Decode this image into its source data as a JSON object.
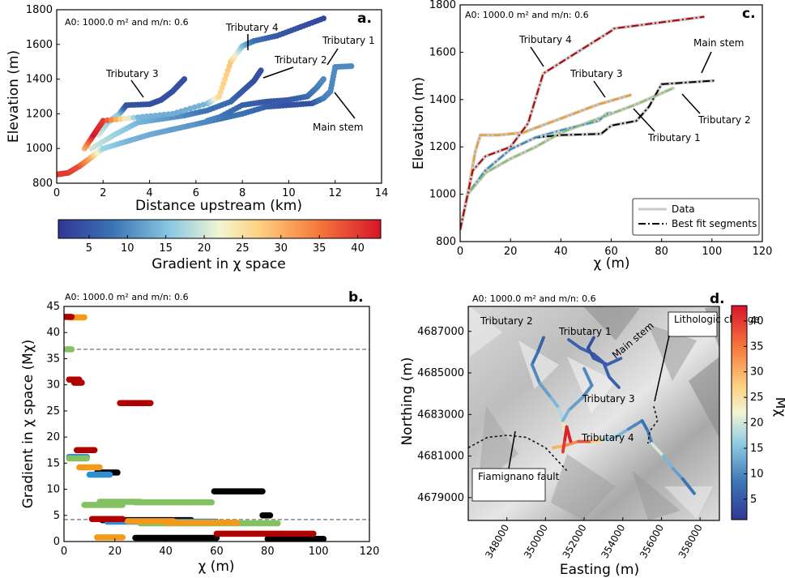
{
  "colors": {
    "colormap": [
      "#3a4fa0",
      "#3f86c3",
      "#8dcde6",
      "#f4f2c7",
      "#fcc26e",
      "#f47a3a",
      "#d6202c"
    ],
    "tributary_1": "#2e8fd1",
    "tributary_2": "#84c261",
    "tributary_3": "#f39a1b",
    "tributary_4": "#b00000",
    "main_stem": "#000000",
    "data": "#c8c8c8",
    "ref_line": "#888888"
  },
  "header_text": "A0: 1000.0 m² and m/n: 0.6",
  "panel_a": {
    "label": "a.",
    "xlabel": "Distance upstream (km)",
    "ylabel": "Elevation (m)",
    "x_ticks": [
      "0",
      "2",
      "4",
      "6",
      "8",
      "10",
      "12",
      "14"
    ],
    "y_ticks": [
      "800",
      "1000",
      "1200",
      "1400",
      "1600",
      "1800"
    ],
    "colorbar_label": "Gradient in χ space",
    "colorbar_ticks": [
      "5",
      "10",
      "15",
      "20",
      "25",
      "30",
      "35",
      "40"
    ],
    "annotations": [
      "Tributary 3",
      "Tributary 4",
      "Tributary 2",
      "Tributary 1",
      "Main stem"
    ]
  },
  "panel_b": {
    "label": "b.",
    "xlabel": "χ (m)",
    "ylabel": "Gradient in χ space (Mχ)",
    "x_ticks": [
      "0",
      "20",
      "40",
      "60",
      "80",
      "100",
      "120"
    ],
    "y_ticks": [
      "0",
      "5",
      "10",
      "15",
      "20",
      "25",
      "30",
      "35",
      "40",
      "45"
    ]
  },
  "panel_c": {
    "label": "c.",
    "xlabel": "χ (m)",
    "ylabel": "Elevation (m)",
    "x_ticks": [
      "0",
      "20",
      "40",
      "60",
      "80",
      "100",
      "120"
    ],
    "y_ticks": [
      "800",
      "1000",
      "1200",
      "1400",
      "1600",
      "1800"
    ],
    "legend": [
      "Data",
      "Best fit segments"
    ],
    "annotations": [
      "Tributary 4",
      "Tributary 3",
      "Main stem",
      "Tributary 2",
      "Tributary 1"
    ]
  },
  "panel_d": {
    "label": "d.",
    "xlabel": "Easting (m)",
    "ylabel": "Northing (m)",
    "x_ticks": [
      "348000",
      "350000",
      "352000",
      "354000",
      "356000",
      "358000"
    ],
    "y_ticks": [
      "4679000",
      "4681000",
      "4683000",
      "4685000",
      "4687000"
    ],
    "colorbar_label": "Mχ",
    "colorbar_ticks": [
      "5",
      "10",
      "15",
      "20",
      "25",
      "30",
      "35",
      "40"
    ],
    "annotations": [
      "Tributary 2",
      "Tributary 1",
      "Main stem",
      "Tributary 3",
      "Tributary 4",
      "Lithologic change",
      "Fiamignano fault"
    ]
  },
  "chart_data": [
    {
      "type": "scatter",
      "panel": "a",
      "xlabel": "Distance upstream (km)",
      "ylabel": "Elevation (m)",
      "xlim": [
        0,
        14
      ],
      "ylim": [
        800,
        1800
      ],
      "colorbar": {
        "label": "Gradient in χ space",
        "range": [
          1,
          43
        ]
      },
      "series": [
        {
          "name": "Main stem",
          "x": [
            0,
            0.5,
            1.0,
            1.5,
            2.0,
            3.0,
            4.0,
            5.0,
            6.0,
            7.0,
            8.0,
            9.0,
            10.0,
            11.0,
            11.5,
            11.8,
            12.0,
            12.7
          ],
          "y": [
            850,
            860,
            900,
            950,
            1000,
            1040,
            1080,
            1110,
            1140,
            1170,
            1200,
            1240,
            1250,
            1260,
            1290,
            1330,
            1470,
            1475
          ],
          "gradient": [
            40,
            40,
            38,
            30,
            17,
            14,
            13,
            12,
            11,
            8,
            8,
            6,
            4,
            4,
            9,
            10,
            10,
            10
          ]
        },
        {
          "name": "Tributary 1",
          "x": [
            6.5,
            7.0,
            8.0,
            9.0,
            10.0,
            10.8,
            11.2,
            11.5
          ],
          "y": [
            1160,
            1180,
            1250,
            1270,
            1280,
            1300,
            1350,
            1400
          ],
          "gradient": [
            10,
            9,
            6,
            5,
            5,
            7,
            9,
            10
          ]
        },
        {
          "name": "Tributary 2",
          "x": [
            1.5,
            2.5,
            3.5,
            4.5,
            5.5,
            6.5,
            7.5,
            8.0,
            8.5,
            8.8
          ],
          "y": [
            1000,
            1080,
            1150,
            1170,
            1190,
            1220,
            1270,
            1330,
            1390,
            1450
          ],
          "gradient": [
            20,
            17,
            14,
            12,
            10,
            8,
            7,
            5,
            4,
            4
          ]
        },
        {
          "name": "Tributary 3",
          "x": [
            1.8,
            2.2,
            2.7,
            3.0,
            4.0,
            4.5,
            5.0,
            5.5
          ],
          "y": [
            1080,
            1150,
            1200,
            1250,
            1255,
            1280,
            1330,
            1400
          ],
          "gradient": [
            20,
            17,
            16,
            4,
            4,
            4,
            4,
            4
          ]
        },
        {
          "name": "Tributary 4",
          "x": [
            1.2,
            1.6,
            2.0,
            3.5,
            5.0,
            6.5,
            7.0,
            7.5,
            8.0,
            8.5,
            9.5,
            10.5,
            11.5
          ],
          "y": [
            1000,
            1080,
            1160,
            1180,
            1200,
            1260,
            1300,
            1500,
            1590,
            1620,
            1650,
            1700,
            1750
          ],
          "gradient": [
            30,
            43,
            40,
            14,
            13,
            14,
            26,
            28,
            15,
            8,
            5,
            4,
            3
          ]
        }
      ]
    },
    {
      "type": "scatter",
      "panel": "b",
      "xlabel": "χ (m)",
      "ylabel": "Gradient in χ space (Mχ)",
      "xlim": [
        0,
        120
      ],
      "ylim": [
        0,
        45
      ],
      "reference_lines_y": [
        36.8,
        4.2
      ],
      "series": [
        {
          "name": "Main stem",
          "segments": [
            [
              13,
              21,
              13.2
            ],
            [
              15,
              50,
              4.1
            ],
            [
              28,
              60,
              0.7
            ],
            [
              59,
              78,
              9.6
            ],
            [
              78,
              81,
              5.0
            ],
            [
              80,
              102,
              0.5
            ]
          ]
        },
        {
          "name": "Tributary 1",
          "segments": [
            [
              2,
              9,
              16.2
            ],
            [
              10,
              18,
              12.8
            ],
            [
              17,
              60,
              3.8
            ]
          ]
        },
        {
          "name": "Tributary 2",
          "segments": [
            [
              1,
              3,
              36.8
            ],
            [
              2,
              9,
              15.9
            ],
            [
              8,
              23,
              7.0
            ],
            [
              14,
              30,
              7.6
            ],
            [
              28,
              58,
              7.5
            ],
            [
              30,
              84,
              3.5
            ]
          ]
        },
        {
          "name": "Tributary 3",
          "segments": [
            [
              2,
              8,
              42.9
            ],
            [
              6,
              14,
              14.2
            ],
            [
              13,
              23,
              0.8
            ],
            [
              25,
              43,
              3.9
            ],
            [
              40,
              68,
              3.6
            ]
          ]
        },
        {
          "name": "Tributary 4",
          "segments": [
            [
              0,
              3,
              43.0
            ],
            [
              2,
              6,
              31.0
            ],
            [
              4,
              7,
              30.4
            ],
            [
              5,
              12,
              17.5
            ],
            [
              11,
              23,
              4.3
            ],
            [
              22,
              34,
              26.5
            ],
            [
              60,
              98,
              1.5
            ]
          ]
        }
      ]
    },
    {
      "type": "line",
      "panel": "c",
      "xlabel": "χ (m)",
      "ylabel": "Elevation (m)",
      "xlim": [
        0,
        120
      ],
      "ylim": [
        800,
        1800
      ],
      "legend_position": "lower-right",
      "series": [
        {
          "name": "Main stem",
          "x": [
            0,
            3,
            10,
            20,
            30,
            40,
            56,
            60,
            70,
            75,
            80,
            101
          ],
          "y": [
            850,
            1000,
            1100,
            1190,
            1240,
            1250,
            1255,
            1290,
            1310,
            1370,
            1465,
            1480
          ]
        },
        {
          "name": "Tributary 1",
          "x": [
            0,
            3,
            10,
            20,
            30,
            40,
            55,
            58,
            60
          ],
          "y": [
            850,
            1000,
            1100,
            1190,
            1240,
            1270,
            1310,
            1340,
            1345
          ]
        },
        {
          "name": "Tributary 2",
          "x": [
            0,
            3,
            10,
            20,
            30,
            40,
            50,
            60,
            70,
            85
          ],
          "y": [
            850,
            1000,
            1090,
            1150,
            1200,
            1260,
            1300,
            1340,
            1380,
            1450
          ]
        },
        {
          "name": "Tributary 3",
          "x": [
            0,
            3,
            6,
            8,
            15,
            25,
            40,
            55,
            68
          ],
          "y": [
            850,
            1000,
            1180,
            1250,
            1250,
            1260,
            1320,
            1380,
            1420
          ]
        },
        {
          "name": "Tributary 4",
          "x": [
            0,
            3,
            5,
            10,
            20,
            27,
            33,
            60,
            61,
            97
          ],
          "y": [
            850,
            1000,
            1100,
            1160,
            1200,
            1300,
            1510,
            1690,
            1700,
            1750
          ]
        }
      ]
    }
  ]
}
